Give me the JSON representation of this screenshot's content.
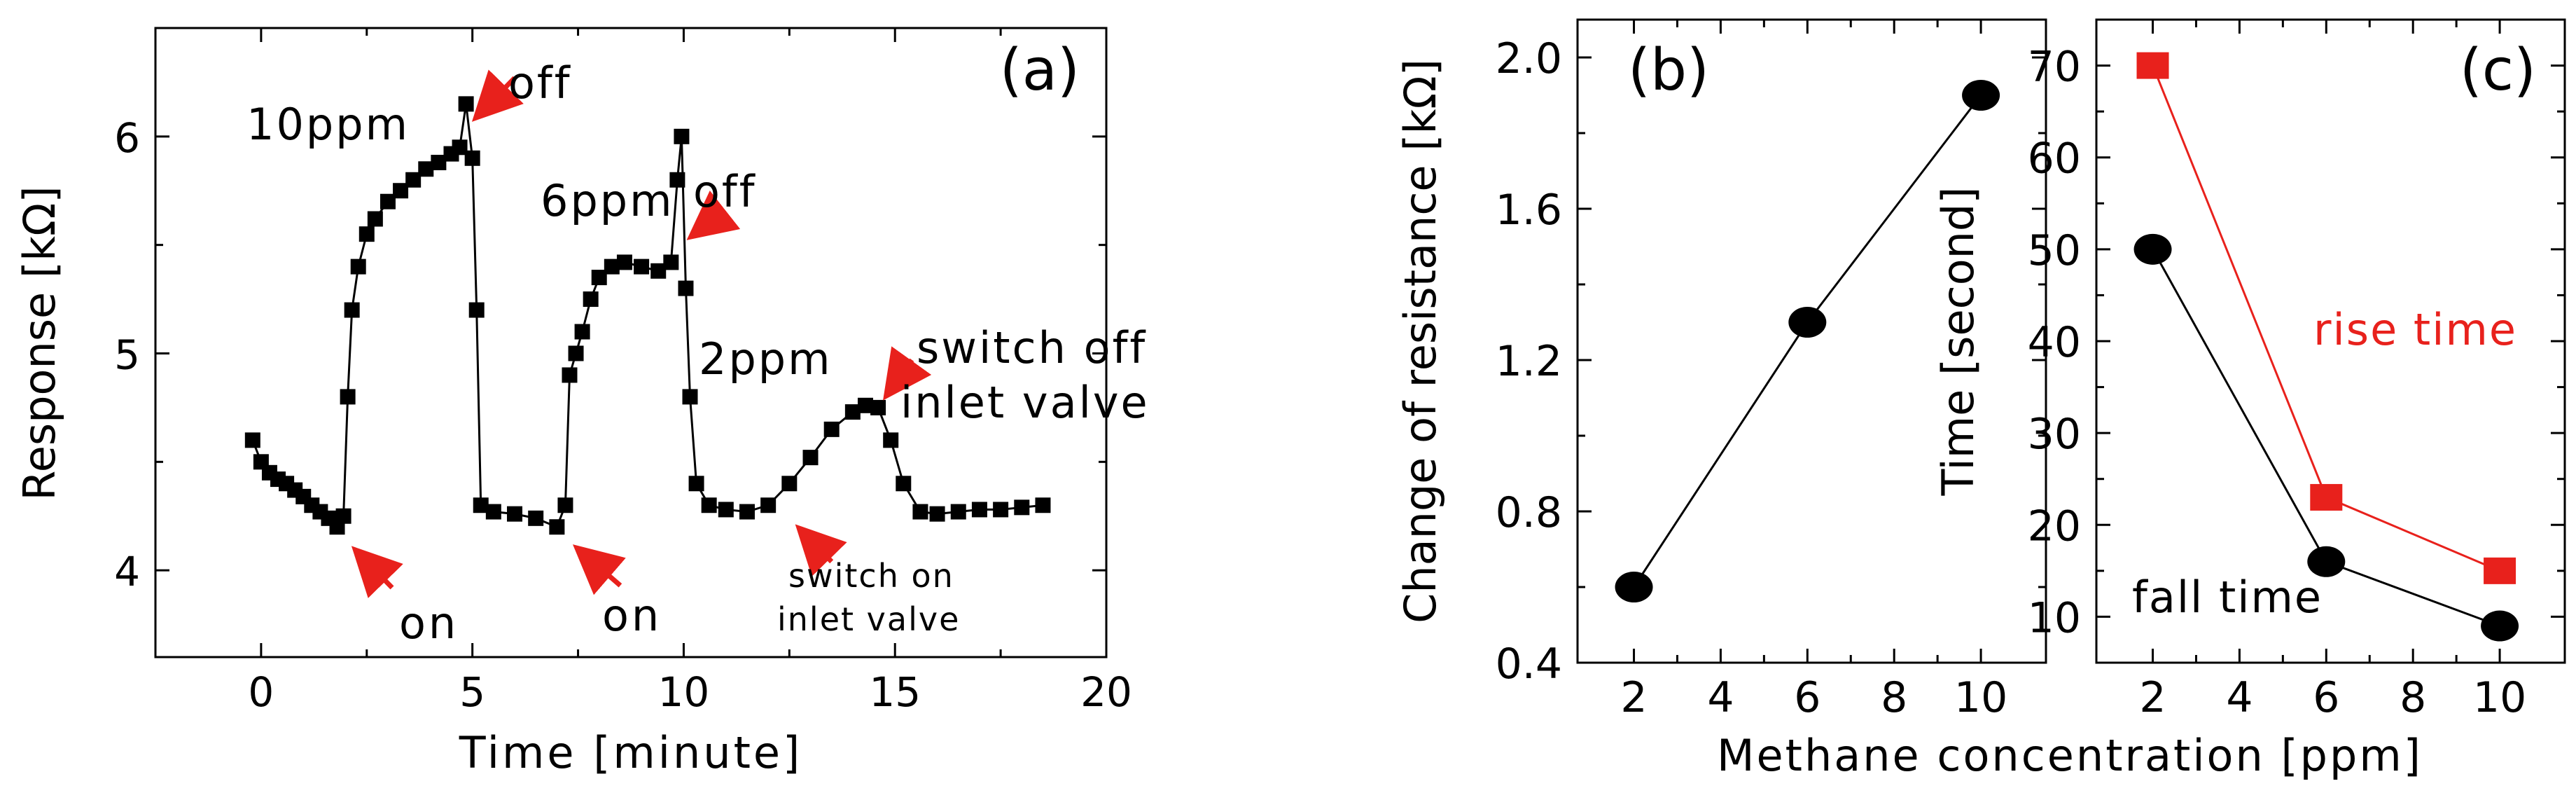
{
  "colors": {
    "black": "#000000",
    "red": "#e8211c",
    "arrow": "#e8211c"
  },
  "chart_data": [
    {
      "type": "line",
      "panel_label": "(a)",
      "xlabel": "Time [minute]",
      "ylabel": "Response [kΩ]",
      "xlim": [
        -2.5,
        20
      ],
      "ylim": [
        3.6,
        6.5
      ],
      "x_ticks": [
        "0",
        "5",
        "10",
        "15",
        "20"
      ],
      "x_tick_values": [
        0,
        5,
        10,
        15,
        20
      ],
      "y_ticks": [
        "4",
        "5",
        "6"
      ],
      "y_tick_values": [
        4,
        5,
        6
      ],
      "series": [
        {
          "name": "Response",
          "x": [
            -0.2,
            0.0,
            0.2,
            0.4,
            0.6,
            0.8,
            1.0,
            1.2,
            1.4,
            1.6,
            1.8,
            1.95,
            2.05,
            2.15,
            2.3,
            2.5,
            2.7,
            3.0,
            3.3,
            3.6,
            3.9,
            4.2,
            4.5,
            4.7,
            4.85,
            5.0,
            5.1,
            5.2,
            5.5,
            6.0,
            6.5,
            7.0,
            7.2,
            7.3,
            7.45,
            7.6,
            7.8,
            8.0,
            8.3,
            8.6,
            9.0,
            9.4,
            9.7,
            9.85,
            9.95,
            10.05,
            10.15,
            10.3,
            10.6,
            11.0,
            11.5,
            12.0,
            12.5,
            13.0,
            13.5,
            14.0,
            14.3,
            14.6,
            14.9,
            15.2,
            15.6,
            16.0,
            16.5,
            17.0,
            17.5,
            18.0,
            18.5
          ],
          "values": [
            4.6,
            4.5,
            4.45,
            4.42,
            4.4,
            4.37,
            4.34,
            4.3,
            4.27,
            4.24,
            4.2,
            4.25,
            4.8,
            5.2,
            5.4,
            5.55,
            5.62,
            5.7,
            5.75,
            5.8,
            5.85,
            5.88,
            5.92,
            5.95,
            6.15,
            5.9,
            5.2,
            4.3,
            4.27,
            4.26,
            4.24,
            4.2,
            4.3,
            4.9,
            5.0,
            5.1,
            5.25,
            5.35,
            5.4,
            5.42,
            5.4,
            5.38,
            5.42,
            5.8,
            6.0,
            5.3,
            4.8,
            4.4,
            4.3,
            4.28,
            4.27,
            4.3,
            4.4,
            4.52,
            4.65,
            4.73,
            4.76,
            4.75,
            4.6,
            4.4,
            4.27,
            4.26,
            4.27,
            4.28,
            4.28,
            4.29,
            4.3
          ]
        }
      ],
      "annotations": [
        {
          "text": "10ppm",
          "x": 1.7,
          "y": 6.05
        },
        {
          "text": "off",
          "x": 6.5,
          "y": 6.42
        },
        {
          "text": "6ppm",
          "x": 7.7,
          "y": 5.68
        },
        {
          "text": "off",
          "x": 11.5,
          "y": 5.7
        },
        {
          "text": "2ppm",
          "x": 11.2,
          "y": 4.98
        },
        {
          "text": "switch off",
          "x": 18.0,
          "y": 5.03
        },
        {
          "text": "inlet valve",
          "x": 18.0,
          "y": 4.8
        },
        {
          "text": "on",
          "x": 3.2,
          "y": 3.82
        },
        {
          "text": "on",
          "x": 9.0,
          "y": 3.83
        },
        {
          "text": "switch on",
          "x": 16.2,
          "y": 4.01
        },
        {
          "text": "inlet valve",
          "x": 16.2,
          "y": 3.81
        }
      ],
      "arrows": [
        {
          "from": [
            6.0,
            6.27
          ],
          "to": [
            5.15,
            6.1
          ]
        },
        {
          "from": [
            10.9,
            5.65
          ],
          "to": [
            10.25,
            5.55
          ]
        },
        {
          "from": [
            15.4,
            4.97
          ],
          "to": [
            14.85,
            4.82
          ]
        },
        {
          "from": [
            3.1,
            3.92
          ],
          "to": [
            2.3,
            4.08
          ]
        },
        {
          "from": [
            8.5,
            3.93
          ],
          "to": [
            7.55,
            4.09
          ]
        },
        {
          "from": [
            13.5,
            4.04
          ],
          "to": [
            12.8,
            4.18
          ]
        }
      ]
    },
    {
      "type": "line",
      "panel_label": "(b)",
      "xlabel": "",
      "ylabel": "Change of resistance [kΩ]",
      "xlim": [
        0.7,
        11.5
      ],
      "ylim": [
        0.4,
        2.1
      ],
      "x_ticks": [
        "2",
        "4",
        "6",
        "8",
        "10"
      ],
      "x_tick_values": [
        2,
        4,
        6,
        8,
        10
      ],
      "y_ticks": [
        "0.4",
        "0.8",
        "1.2",
        "1.6",
        "2.0"
      ],
      "y_tick_values": [
        0.4,
        0.8,
        1.2,
        1.6,
        2.0
      ],
      "series": [
        {
          "name": "Change of resistance",
          "x": [
            2,
            6,
            10
          ],
          "values": [
            0.6,
            1.3,
            1.9
          ]
        }
      ]
    },
    {
      "type": "line",
      "panel_label": "(c)",
      "xlabel": "",
      "ylabel": "Time [second]",
      "xlim": [
        0.7,
        11.5
      ],
      "ylim": [
        5,
        75
      ],
      "x_ticks": [
        "2",
        "4",
        "6",
        "8",
        "10"
      ],
      "x_tick_values": [
        2,
        4,
        6,
        8,
        10
      ],
      "y_ticks": [
        "10",
        "20",
        "30",
        "40",
        "50",
        "60",
        "70"
      ],
      "y_tick_values": [
        10,
        20,
        30,
        40,
        50,
        60,
        70
      ],
      "series": [
        {
          "name": "rise time",
          "x": [
            2,
            6,
            10
          ],
          "values": [
            70,
            23,
            15
          ]
        },
        {
          "name": "fall time",
          "x": [
            2,
            6,
            10
          ],
          "values": [
            50,
            16,
            9
          ]
        }
      ],
      "annotations": [
        {
          "text": "rise time",
          "x": 9.9,
          "y": 45
        },
        {
          "text": "fall time",
          "x": 4.4,
          "y": 13
        }
      ]
    }
  ],
  "shared": {
    "xlabel": "Methane concentration [ppm]"
  }
}
